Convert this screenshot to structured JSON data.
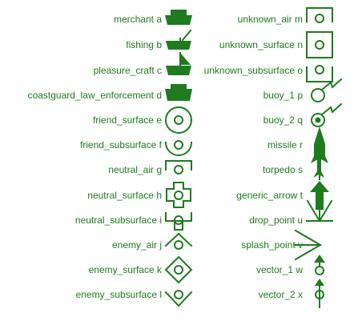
{
  "symbol_color": "#1e7b1e",
  "left_column": [
    {
      "id": "merchant",
      "label": "merchant a"
    },
    {
      "id": "fishing",
      "label": "fishing b"
    },
    {
      "id": "pleasure-craft",
      "label": "pleasure_craft c"
    },
    {
      "id": "coastguard",
      "label": "coastguard_law_enforcement d"
    },
    {
      "id": "friend-surface",
      "label": "friend_surface e"
    },
    {
      "id": "friend-subsurface",
      "label": "friend_subsurface f"
    },
    {
      "id": "neutral-air",
      "label": "neutral_air g"
    },
    {
      "id": "neutral-surface",
      "label": "neutral_surface h"
    },
    {
      "id": "neutral-subsurface",
      "label": "neutral_subsurface i"
    },
    {
      "id": "enemy-air",
      "label": "enemy_air j"
    },
    {
      "id": "enemy-surface",
      "label": "enemy_surface k"
    },
    {
      "id": "enemy-subsurface",
      "label": "enemy_subsurface l"
    }
  ],
  "right_column": [
    {
      "id": "unknown-air",
      "label": "unknown_air m"
    },
    {
      "id": "unknown-surface",
      "label": "unknown_surface n"
    },
    {
      "id": "unknown-subsurface",
      "label": "unknown_subsurface o"
    },
    {
      "id": "buoy-1",
      "label": "buoy_1 p"
    },
    {
      "id": "buoy-2",
      "label": "buoy_2 q"
    },
    {
      "id": "missile",
      "label": "missile r"
    },
    {
      "id": "torpedo",
      "label": "torpedo s"
    },
    {
      "id": "generic-arrow",
      "label": "generic_arrow t"
    },
    {
      "id": "drop-point",
      "label": "drop_point u"
    },
    {
      "id": "splash-point",
      "label": "splash_point v"
    },
    {
      "id": "vector-1",
      "label": "vector_1 w"
    },
    {
      "id": "vector-2",
      "label": "vector_2 x"
    }
  ]
}
